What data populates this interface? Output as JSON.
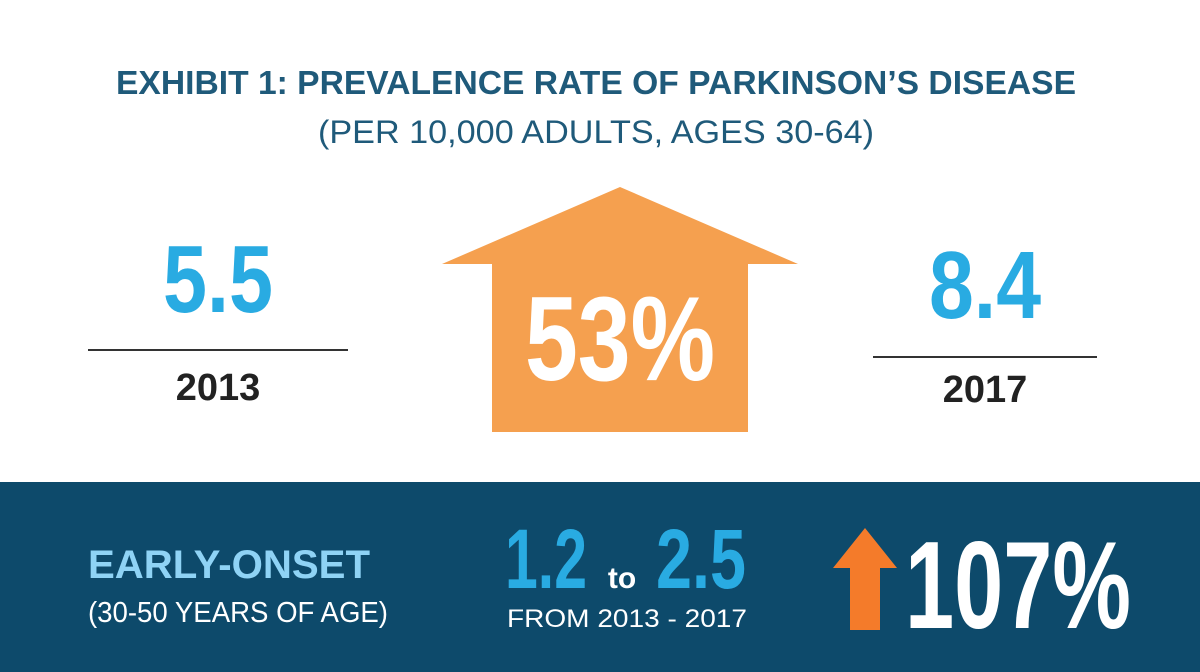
{
  "header": {
    "title": "EXHIBIT 1:  PREVALENCE RATE OF PARKINSON’S DISEASE",
    "subtitle": "(PER 10,000 ADULTS, AGES 30-64)"
  },
  "overall": {
    "start": {
      "value": "5.5",
      "year": "2013"
    },
    "change": "53%",
    "end": {
      "value": "8.4",
      "year": "2017"
    }
  },
  "early_onset": {
    "label": "EARLY-ONSET",
    "sublabel": "(30-50 YEARS OF AGE)",
    "from": "1.2",
    "connector": "to",
    "to": "2.5",
    "period": "FROM 2013 - 2017",
    "change": "107%"
  }
}
